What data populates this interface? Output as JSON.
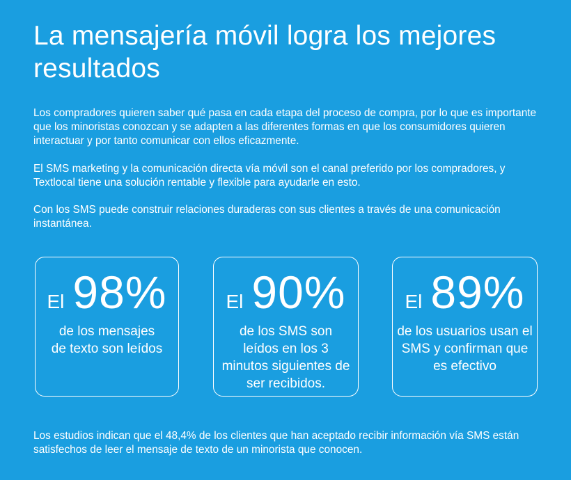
{
  "header": {
    "title": "La mensajería móvil logra los mejores resultados"
  },
  "intro": {
    "p1": "Los compradores quieren saber qué pasa en cada etapa del proceso de compra, por lo que es importante que los minoristas conozcan y se adapten a las diferentes formas en que los consumidores quieren interactuar y por tanto comunicar con ellos eficazmente.",
    "p2": "El SMS marketing y la comunicación directa vía móvil son el canal preferido por los compradores, y Textlocal tiene una solución rentable y flexible para ayudarle en esto.",
    "p3": "Con los SMS puede construir relaciones duraderas con sus clientes a través de una comunicación instantánea."
  },
  "stats": [
    {
      "prefix": "El",
      "value": "98%",
      "description": "de los mensajes de texto son leídos"
    },
    {
      "prefix": "El",
      "value": "90%",
      "description": "de los SMS son leídos en los 3 minutos siguientes de ser recibidos."
    },
    {
      "prefix": "El",
      "value": "89%",
      "description": "de los usuarios usan el SMS y confirman que es efectivo"
    }
  ],
  "footer": {
    "text": "Los estudios indican que el 48,4% de los clientes que han aceptado recibir información vía SMS están satisfechos de leer el mensaje de texto de un minorista que conocen."
  },
  "colors": {
    "background": "#1a9ee0",
    "text": "#ffffff"
  }
}
